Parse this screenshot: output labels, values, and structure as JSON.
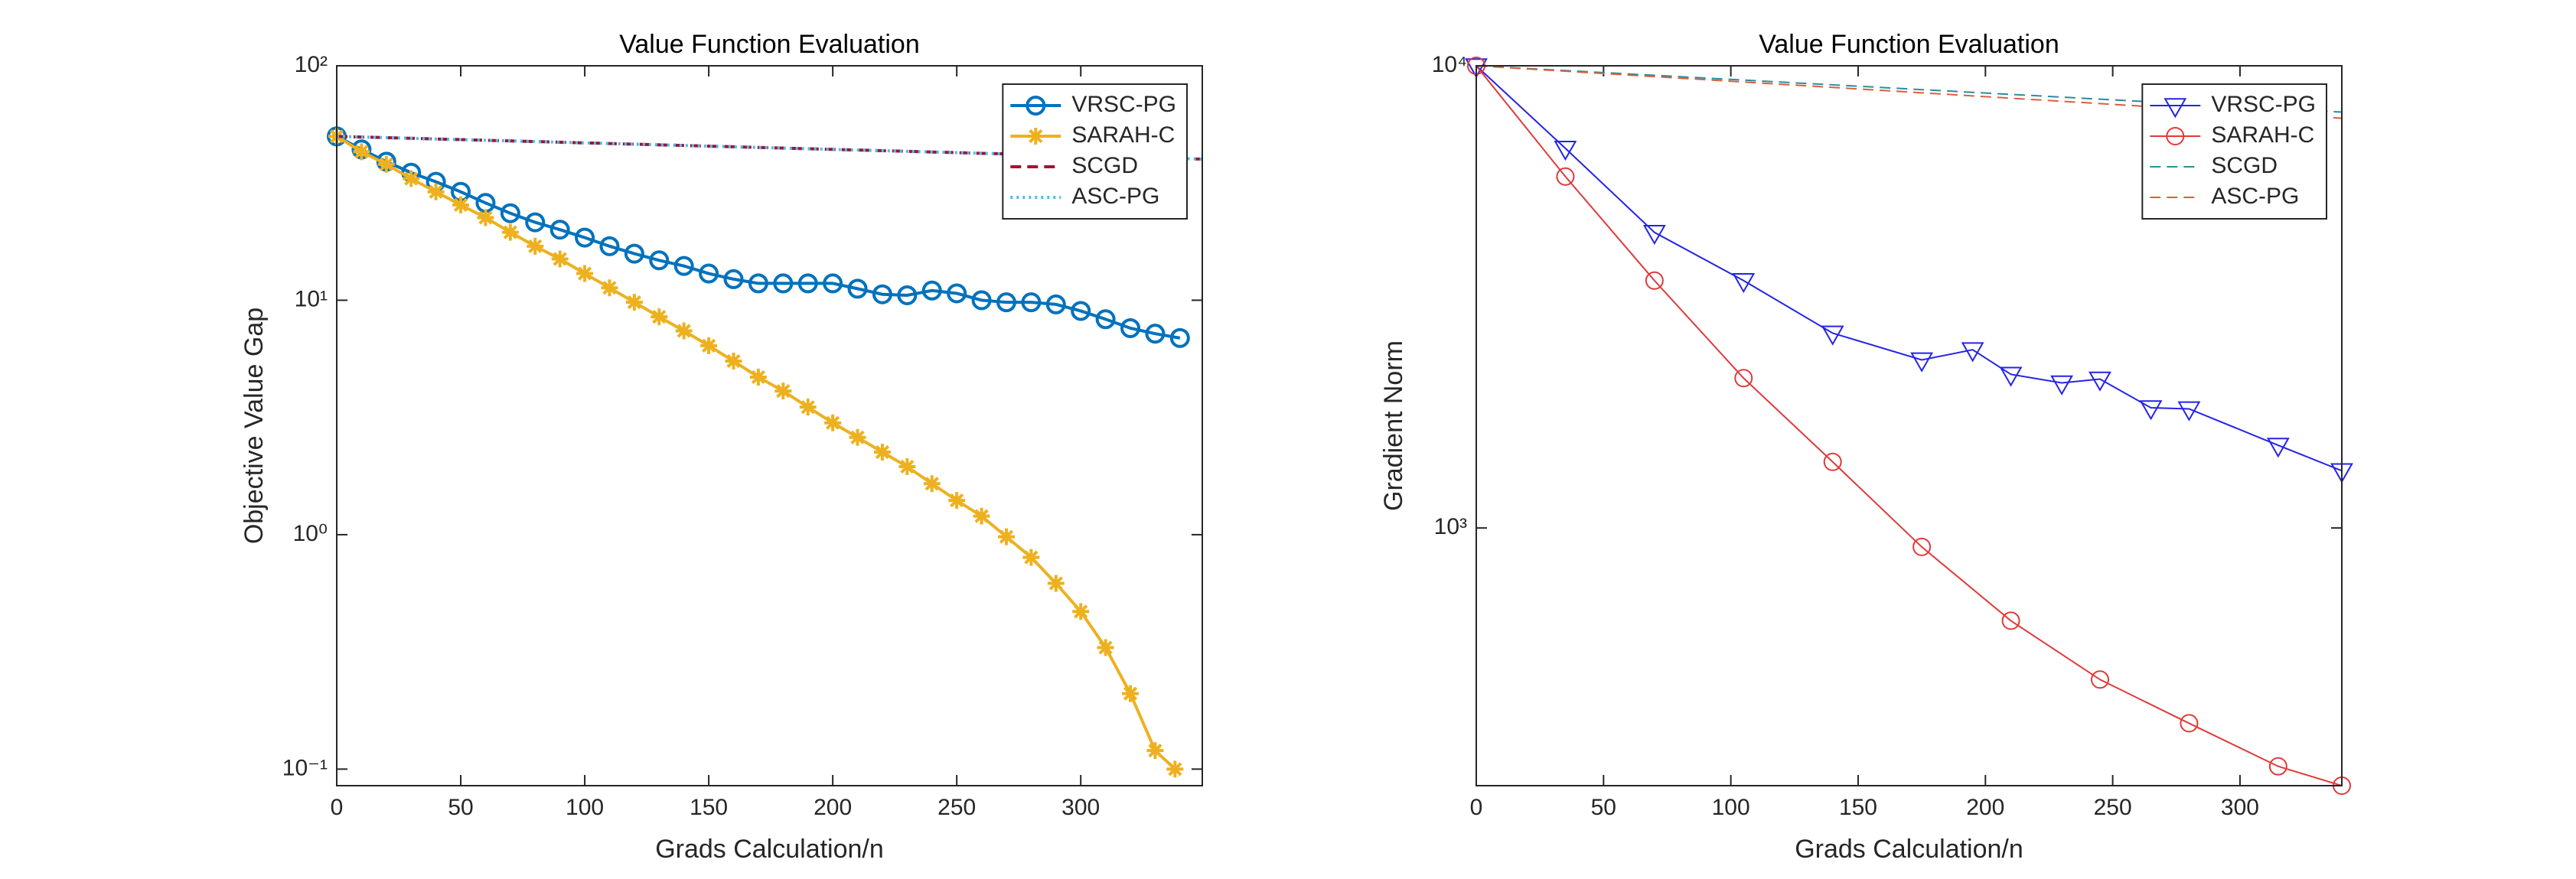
{
  "chart_data": [
    {
      "type": "line",
      "title": "Value Function Evaluation",
      "xlabel": "Grads Calculation/n",
      "ylabel": "Objective Value Gap",
      "xlim": [
        0,
        349
      ],
      "xticks": [
        0,
        50,
        100,
        150,
        200,
        250,
        300
      ],
      "ylim": [
        0.085,
        100
      ],
      "yscale": "log",
      "yticks": [
        {
          "value": 0.1,
          "label": "10⁻¹"
        },
        {
          "value": 1,
          "label": "10⁰"
        },
        {
          "value": 10,
          "label": "10¹"
        },
        {
          "value": 100,
          "label": "10²"
        }
      ],
      "legend": "upper right",
      "line_width": 4,
      "series": [
        {
          "name": "VRSC-PG",
          "color": "#0072BD",
          "marker": "circle",
          "dash": "solid",
          "x": [
            0,
            10,
            20,
            30,
            40,
            50,
            60,
            70,
            80,
            90,
            100,
            110,
            120,
            130,
            140,
            150,
            160,
            170,
            180,
            190,
            200,
            210,
            220,
            230,
            240,
            250,
            260,
            270,
            280,
            290,
            300,
            310,
            320,
            330,
            340
          ],
          "values": [
            50,
            44,
            39,
            35,
            32,
            29,
            26,
            23.5,
            21.5,
            20,
            18.5,
            17,
            15.8,
            14.8,
            14,
            13,
            12.3,
            11.8,
            11.8,
            11.8,
            11.8,
            11.2,
            10.6,
            10.5,
            11,
            10.7,
            10,
            9.8,
            9.8,
            9.6,
            9,
            8.3,
            7.6,
            7.2,
            6.9
          ]
        },
        {
          "name": "SARAH-C",
          "color": "#EDB120",
          "marker": "star",
          "dash": "solid",
          "x": [
            0,
            10,
            20,
            30,
            40,
            50,
            60,
            70,
            80,
            90,
            100,
            110,
            120,
            130,
            140,
            150,
            160,
            170,
            180,
            190,
            200,
            210,
            220,
            230,
            240,
            250,
            260,
            270,
            280,
            290,
            300,
            310,
            320,
            330,
            338
          ],
          "values": [
            50,
            43,
            38,
            33,
            29,
            25.5,
            22.5,
            19.5,
            17,
            15,
            13,
            11.3,
            9.8,
            8.5,
            7.4,
            6.4,
            5.5,
            4.7,
            4.1,
            3.5,
            3.0,
            2.6,
            2.25,
            1.95,
            1.65,
            1.4,
            1.2,
            0.98,
            0.8,
            0.62,
            0.47,
            0.33,
            0.21,
            0.12,
            0.1
          ]
        },
        {
          "name": "SCGD",
          "color": "#A2142F",
          "marker": "none",
          "dash": "dashed",
          "x": [
            0,
            349
          ],
          "values": [
            50,
            40
          ]
        },
        {
          "name": "ASC-PG",
          "color": "#4DBEEE",
          "marker": "none",
          "dash": "dotted",
          "x": [
            0,
            349
          ],
          "values": [
            50,
            40
          ]
        }
      ]
    },
    {
      "type": "line",
      "title": "Value Function Evaluation",
      "xlabel": "Grads Calculation/n",
      "ylabel": "Gradient Norm",
      "xlim": [
        0,
        340
      ],
      "xticks": [
        0,
        50,
        100,
        150,
        200,
        250,
        300
      ],
      "ylim": [
        277,
        10000
      ],
      "yscale": "log",
      "yticks": [
        {
          "value": 1000,
          "label": "10³"
        },
        {
          "value": 10000,
          "label": "10⁴"
        }
      ],
      "legend": "upper right",
      "line_width": 2,
      "series": [
        {
          "name": "VRSC-PG",
          "color": "#2424e6",
          "marker": "triangle-down",
          "dash": "solid",
          "x": [
            0,
            35,
            70,
            105,
            140,
            175,
            195,
            210,
            230,
            245,
            265,
            280,
            315,
            340
          ],
          "values": [
            10000,
            6630,
            4360,
            3430,
            2640,
            2310,
            2430,
            2150,
            2060,
            2100,
            1820,
            1810,
            1510,
            1330
          ]
        },
        {
          "name": "SARAH-C",
          "color": "#e03a3a",
          "marker": "circle",
          "dash": "solid",
          "x": [
            0,
            35,
            70,
            105,
            140,
            175,
            210,
            245,
            280,
            315,
            340
          ],
          "values": [
            10000,
            5760,
            3430,
            2110,
            1390,
            910,
            630,
            470,
            378,
            305,
            277
          ]
        },
        {
          "name": "SCGD",
          "color": "#2a8d9c",
          "marker": "none",
          "dash": "dashed",
          "x": [
            0,
            340
          ],
          "values": [
            10000,
            7940
          ]
        },
        {
          "name": "ASC-PG",
          "color": "#d9603b",
          "marker": "none",
          "dash": "dashed",
          "x": [
            0,
            340
          ],
          "values": [
            10000,
            7700
          ]
        }
      ]
    }
  ]
}
